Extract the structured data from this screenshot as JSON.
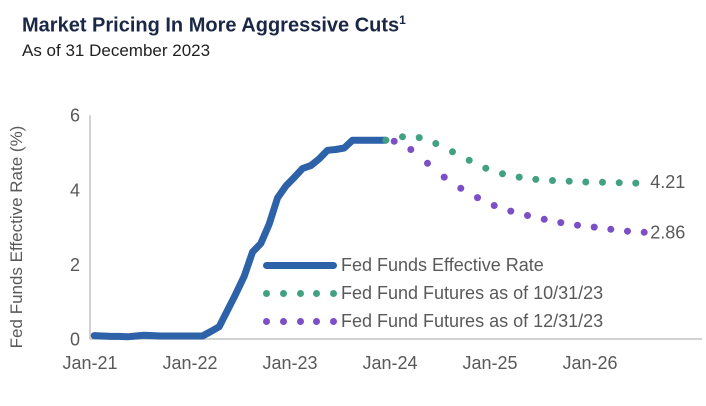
{
  "header": {
    "title": "Market Pricing In More Aggressive Cuts",
    "title_superscript": "1",
    "subtitle": "As of 31 December 2023"
  },
  "colors": {
    "title_navy": "#1a2747",
    "effective_rate_blue": "#2d61a8",
    "futures_oct_green": "#42a183",
    "futures_dec_purple": "#7d4fc7",
    "axis_text_gray": "#595959",
    "axis_line_gray": "#c4c4c4"
  },
  "chart_data": {
    "type": "line",
    "ylabel": "Fed Funds Effective Rate (%)",
    "xlabel": "",
    "ylim": [
      0,
      6
    ],
    "y_ticks": [
      0,
      2,
      4,
      6
    ],
    "x_tick_labels": [
      "Jan-21",
      "Jan-22",
      "Jan-23",
      "Jan-24",
      "Jan-25",
      "Jan-26"
    ],
    "grid": false,
    "legend_position": "inside-lower-right",
    "series": [
      {
        "name": "Fed Funds Effective Rate",
        "style": "solid",
        "color": "#2d61a8",
        "start": "Jan-21",
        "interval": "monthly",
        "end_label": "",
        "values": [
          0.09,
          0.08,
          0.07,
          0.07,
          0.06,
          0.08,
          0.1,
          0.09,
          0.08,
          0.08,
          0.08,
          0.08,
          0.08,
          0.08,
          0.2,
          0.33,
          0.77,
          1.21,
          1.68,
          2.33,
          2.56,
          3.08,
          3.78,
          4.1,
          4.33,
          4.57,
          4.65,
          4.83,
          5.06,
          5.08,
          5.12,
          5.33,
          5.33,
          5.33,
          5.33,
          5.33
        ]
      },
      {
        "name": "Fed Fund Futures as of 10/31/23",
        "style": "dotted",
        "color": "#42a183",
        "start": "Dec-23",
        "interval": "monthly",
        "end_label": "4.21",
        "dot_phase": 0,
        "values": [
          5.33,
          5.38,
          5.42,
          5.44,
          5.4,
          5.33,
          5.24,
          5.13,
          5.02,
          4.9,
          4.79,
          4.68,
          4.58,
          4.5,
          4.43,
          4.38,
          4.34,
          4.31,
          4.28,
          4.26,
          4.25,
          4.24,
          4.23,
          4.22,
          4.21,
          4.21,
          4.2,
          4.2,
          4.19,
          4.19,
          4.18,
          4.21
        ]
      },
      {
        "name": "Fed Fund Futures as of 12/31/23",
        "style": "dotted",
        "color": "#7d4fc7",
        "start": "Dec-23",
        "interval": "monthly",
        "end_label": "2.86",
        "dot_phase": 1,
        "values": [
          5.33,
          5.3,
          5.22,
          5.08,
          4.9,
          4.71,
          4.52,
          4.34,
          4.18,
          4.04,
          3.91,
          3.79,
          3.68,
          3.58,
          3.5,
          3.43,
          3.37,
          3.31,
          3.26,
          3.21,
          3.16,
          3.12,
          3.08,
          3.05,
          3.02,
          3.0,
          2.97,
          2.94,
          2.91,
          2.89,
          2.87,
          2.86
        ]
      }
    ]
  }
}
